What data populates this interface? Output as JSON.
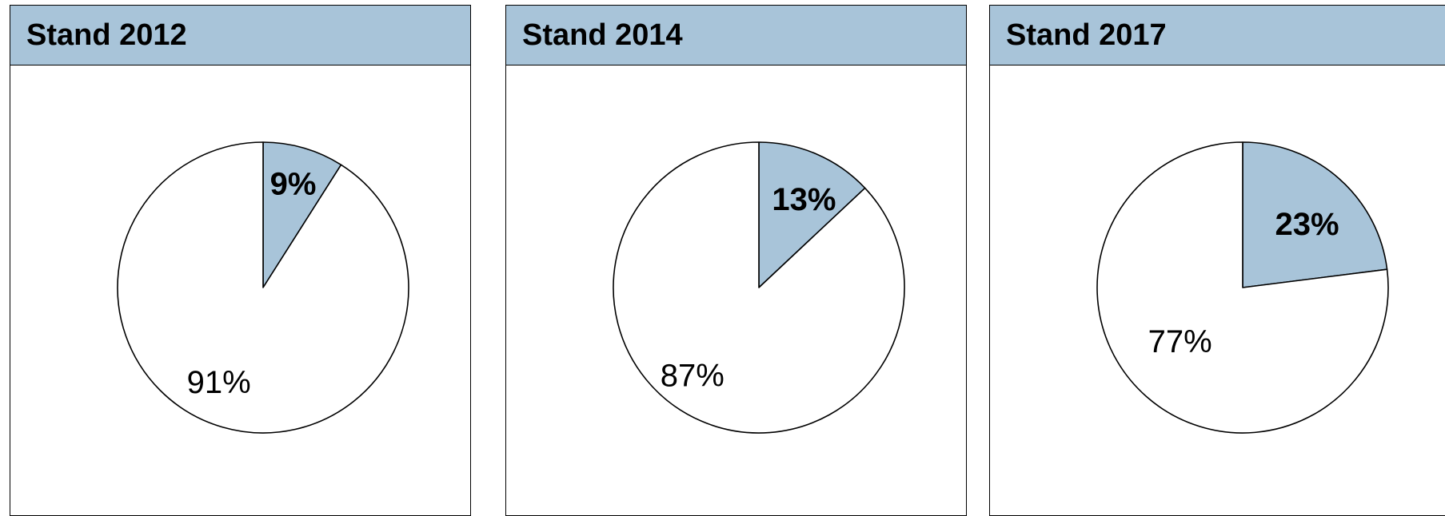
{
  "colors": {
    "header_bg": "#a8c4d9",
    "highlight_slice": "#a8c4d9",
    "rest_slice": "#ffffff",
    "stroke": "#000000"
  },
  "chart_data": [
    {
      "type": "pie",
      "title": "Stand 2012",
      "slices": [
        {
          "value": 9,
          "label": "9%",
          "emphasis": true
        },
        {
          "value": 91,
          "label": "91%",
          "emphasis": false
        }
      ]
    },
    {
      "type": "pie",
      "title": "Stand 2014",
      "slices": [
        {
          "value": 13,
          "label": "13%",
          "emphasis": true
        },
        {
          "value": 87,
          "label": "87%",
          "emphasis": false
        }
      ]
    },
    {
      "type": "pie",
      "title": "Stand 2017",
      "slices": [
        {
          "value": 23,
          "label": "23%",
          "emphasis": true
        },
        {
          "value": 77,
          "label": "77%",
          "emphasis": false
        }
      ]
    }
  ]
}
